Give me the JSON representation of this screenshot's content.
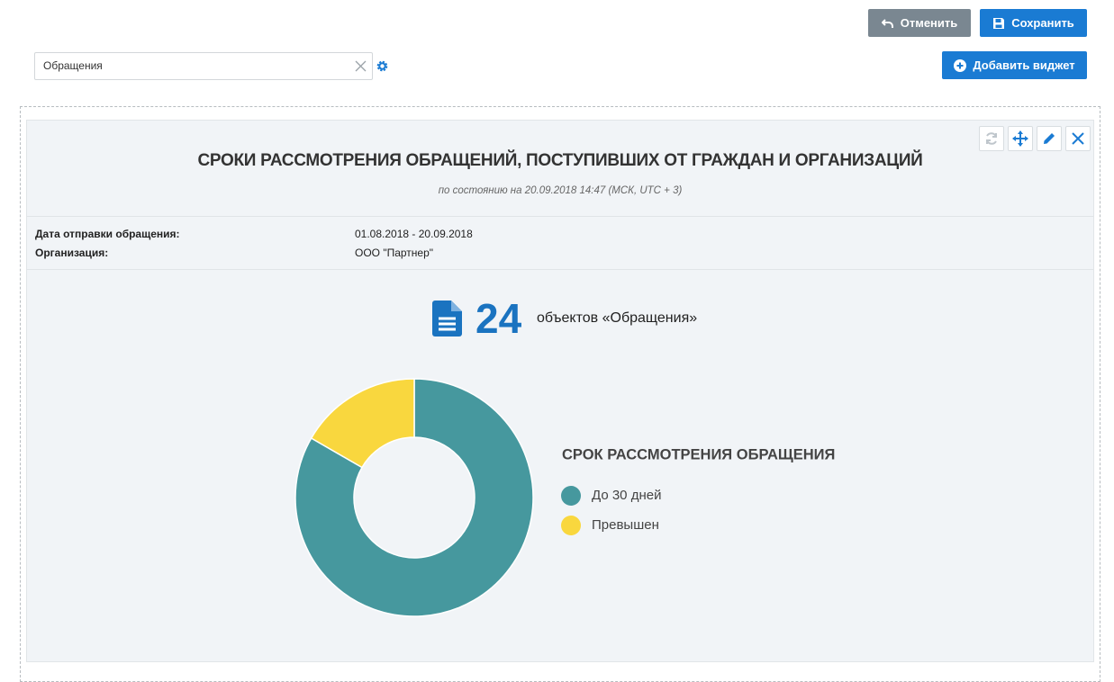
{
  "toolbar": {
    "cancel": "Отменить",
    "save": "Сохранить",
    "add_widget": "Добавить виджет"
  },
  "search": {
    "value": "Обращения"
  },
  "widget": {
    "title": "СРОКИ РАССМОТРЕНИЯ ОБРАЩЕНИЙ, ПОСТУПИВШИХ ОТ ГРАЖДАН И ОРГАНИЗАЦИЙ",
    "subtitle": "по состоянию на 20.09.2018 14:47 (МСК, UTC + 3)",
    "filters": [
      {
        "label": "Дата отправки обращения:",
        "value": "01.08.2018 - 20.09.2018"
      },
      {
        "label": "Организация:",
        "value": "ООО \"Партнер\""
      }
    ],
    "count": 24,
    "count_label": "объектов «Обращения»"
  },
  "chart_data": {
    "type": "donut",
    "title": "СРОК РАССМОТРЕНИЯ ОБРАЩЕНИЯ",
    "categories": [
      "До 30 дней",
      "Превышен"
    ],
    "values": [
      20,
      4
    ],
    "colors": [
      "#46989e",
      "#f9d73e"
    ]
  }
}
